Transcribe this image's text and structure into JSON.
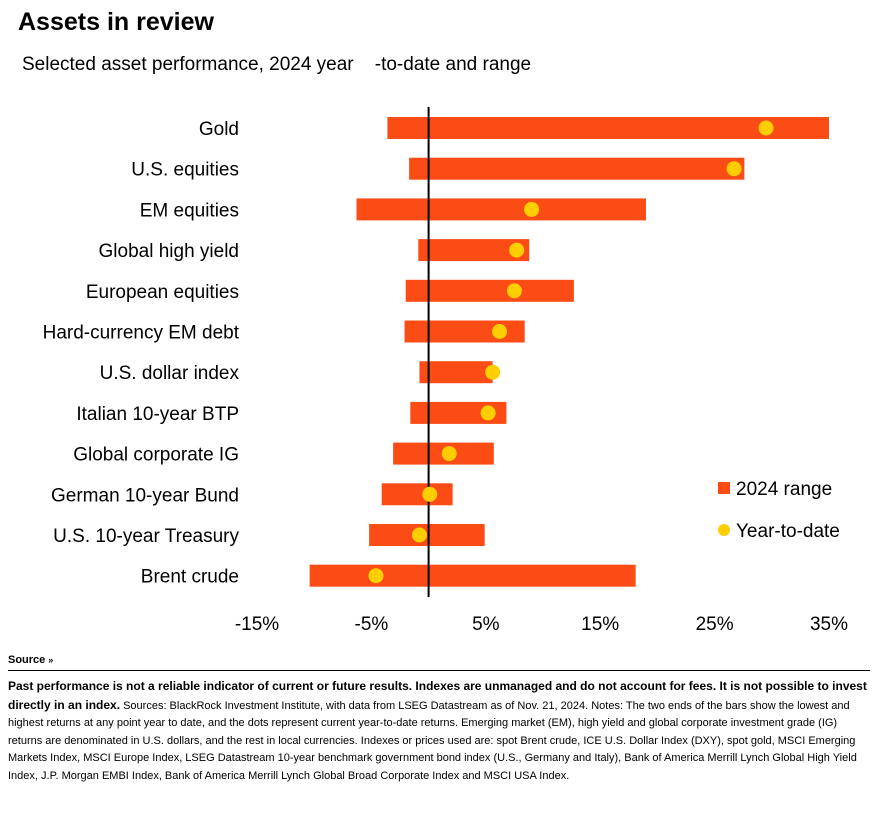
{
  "header": {
    "title": "Assets in review",
    "subtitle": "Selected asset performance, 2024 year    -to-date and range"
  },
  "colors": {
    "range": "#fc4c16",
    "ytd": "#ffce00",
    "axis": "#000000"
  },
  "legend": {
    "range_label": "2024 range",
    "ytd_label": "Year-to-date"
  },
  "chart_data": {
    "type": "bar",
    "orientation": "horizontal",
    "categories": [
      "Gold",
      "U.S. equities",
      "EM equities",
      "Global high yield",
      "European equities",
      "Hard-currency EM debt",
      "U.S. dollar index",
      "Italian 10-year BTP",
      "Global corporate IG",
      "German 10-year Bund",
      "U.S. 10-year Treasury",
      "Brent crude"
    ],
    "series": [
      {
        "name": "2024 range",
        "kind": "range",
        "low": [
          -3.6,
          -1.7,
          -6.3,
          -0.9,
          -2.0,
          -2.1,
          -0.8,
          -1.6,
          -3.1,
          -4.1,
          -5.2,
          -10.4
        ],
        "high": [
          35.0,
          27.6,
          19.0,
          8.8,
          12.7,
          8.4,
          5.6,
          6.8,
          5.7,
          2.1,
          4.9,
          18.1
        ]
      },
      {
        "name": "Year-to-date",
        "kind": "point",
        "values": [
          29.5,
          26.7,
          9.0,
          7.7,
          7.5,
          6.2,
          5.6,
          5.2,
          1.8,
          0.1,
          -0.8,
          -4.6
        ]
      }
    ],
    "xlim": [
      -15,
      35
    ],
    "xticks": [
      "-15%",
      "-5%",
      "5%",
      "15%",
      "25%",
      "35%"
    ],
    "xtick_values": [
      -15,
      -5,
      5,
      15,
      25,
      35
    ],
    "zero_line": true,
    "legend_position": "right",
    "xlabel": "",
    "ylabel": ""
  },
  "footer": {
    "source_label": "Source",
    "disclaimer": "Past performance is not a reliable indicator of current or future results. Indexes are unmanaged and do not account for fees. It is not possible to invest directly in an index.",
    "sources": " Sources: BlackRock Investment Institute, with data from LSEG Datastream as of Nov. 21, 2024. Notes: The two ends of the bars show the lowest and highest returns at any point year to date, and the dots represent current year-to-date returns. Emerging market (EM), high yield and global corporate investment grade (IG) returns are denominated in U.S. dollars, and the rest in local currencies. Indexes or prices used are: spot Brent crude, ICE U.S. Dollar Index (DXY), spot gold, MSCI Emerging Markets Index, MSCI Europe Index, LSEG Datastream 10-year benchmark government bond index (U.S., Germany and Italy), Bank of America Merrill Lynch Global High Yield Index, J.P. Morgan EMBI Index, Bank of America Merrill Lynch Global Broad Corporate Index and MSCI USA Index."
  }
}
